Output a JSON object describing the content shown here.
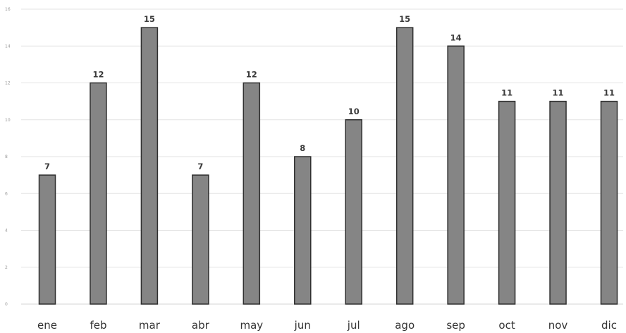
{
  "chart_data": {
    "type": "bar",
    "categories": [
      "ene",
      "feb",
      "mar",
      "abr",
      "may",
      "jun",
      "jul",
      "ago",
      "sep",
      "oct",
      "nov",
      "dic"
    ],
    "values": [
      7,
      12,
      15,
      7,
      12,
      8,
      10,
      15,
      14,
      11,
      11,
      11
    ],
    "data_labels": [
      "7",
      "12",
      "15",
      "7",
      "12",
      "8",
      "10",
      "15",
      "14",
      "11",
      "11",
      "11"
    ],
    "y_ticks": [
      0,
      2,
      4,
      6,
      8,
      10,
      12,
      14,
      16
    ],
    "ylim": [
      0,
      16
    ],
    "grid": true,
    "title": "",
    "xlabel": "",
    "ylabel": "",
    "colors": {
      "bar_fill": "#858585",
      "bar_edge": "#2f2f2f"
    }
  }
}
